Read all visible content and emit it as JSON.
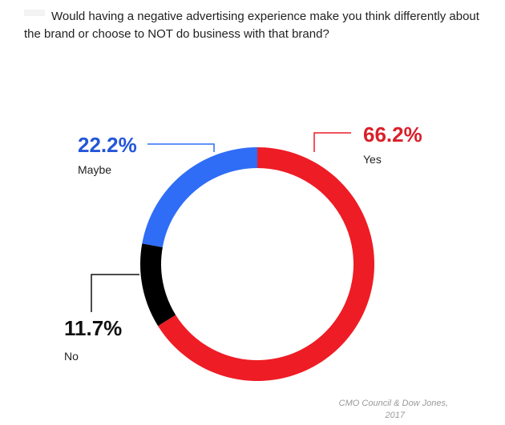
{
  "question": "Would having a negative advertising experience make you think differently about the brand or choose to NOT do business with that brand?",
  "source": {
    "line1": "CMO Council & Dow Jones,",
    "line2": "2017"
  },
  "chart_data": {
    "type": "pie",
    "title": "Would having a negative advertising experience make you think differently about the brand or choose to NOT do business with that brand?",
    "donut": true,
    "categories": [
      "Yes",
      "No",
      "Maybe"
    ],
    "values": [
      66.2,
      11.7,
      22.2
    ],
    "labels": [
      "66.2%",
      "11.7%",
      "22.2%"
    ],
    "colors": [
      "#ee1c25",
      "#000000",
      "#2f6df6"
    ],
    "label_colors": [
      "#d9202a",
      "#111111",
      "#2456d8"
    ],
    "legend": "none"
  }
}
